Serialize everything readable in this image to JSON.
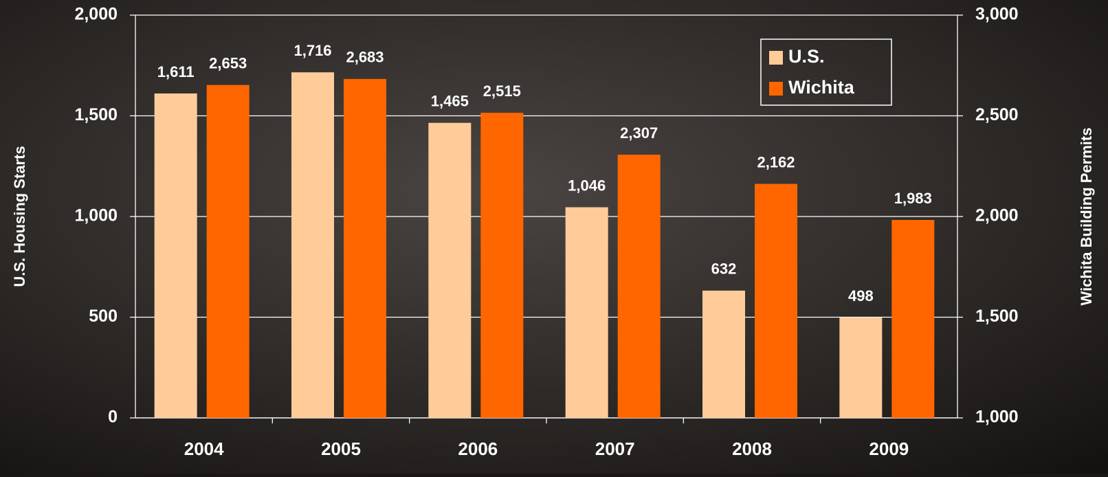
{
  "chart_data": {
    "type": "bar",
    "categories": [
      "2004",
      "2005",
      "2006",
      "2007",
      "2008",
      "2009"
    ],
    "series": [
      {
        "name": "U.S.",
        "color": "#ffcc99",
        "axis": "y",
        "values": [
          1611,
          1716,
          1465,
          1046,
          632,
          498
        ],
        "value_labels": [
          "1,611",
          "1,716",
          "1,465",
          "1,046",
          "632",
          "498"
        ]
      },
      {
        "name": "Wichita",
        "color": "#ff6600",
        "axis": "y2",
        "values": [
          2653,
          2683,
          2515,
          2307,
          2162,
          1983
        ],
        "value_labels": [
          "2,653",
          "2,683",
          "2,515",
          "2,307",
          "2,162",
          "1,983"
        ]
      }
    ],
    "ylabel": "U.S. Housing Starts",
    "y2label": "Wichita Building Permits",
    "ylim": [
      0,
      2000
    ],
    "yticks": [
      0,
      500,
      {
        "value": 1000,
        "label": "1,000"
      },
      {
        "value": 1500,
        "label": "1,500"
      },
      {
        "value": 2000,
        "label": "2,000"
      }
    ],
    "y2lim": [
      1000,
      3000
    ],
    "y2ticks": [
      {
        "value": 1000,
        "label": "1,000"
      },
      {
        "value": 1500,
        "label": "1,500"
      },
      {
        "value": 2000,
        "label": "2,000"
      },
      {
        "value": 2500,
        "label": "2,500"
      },
      {
        "value": 3000,
        "label": "3,000"
      }
    ],
    "grid": true,
    "legend": "upper right"
  }
}
